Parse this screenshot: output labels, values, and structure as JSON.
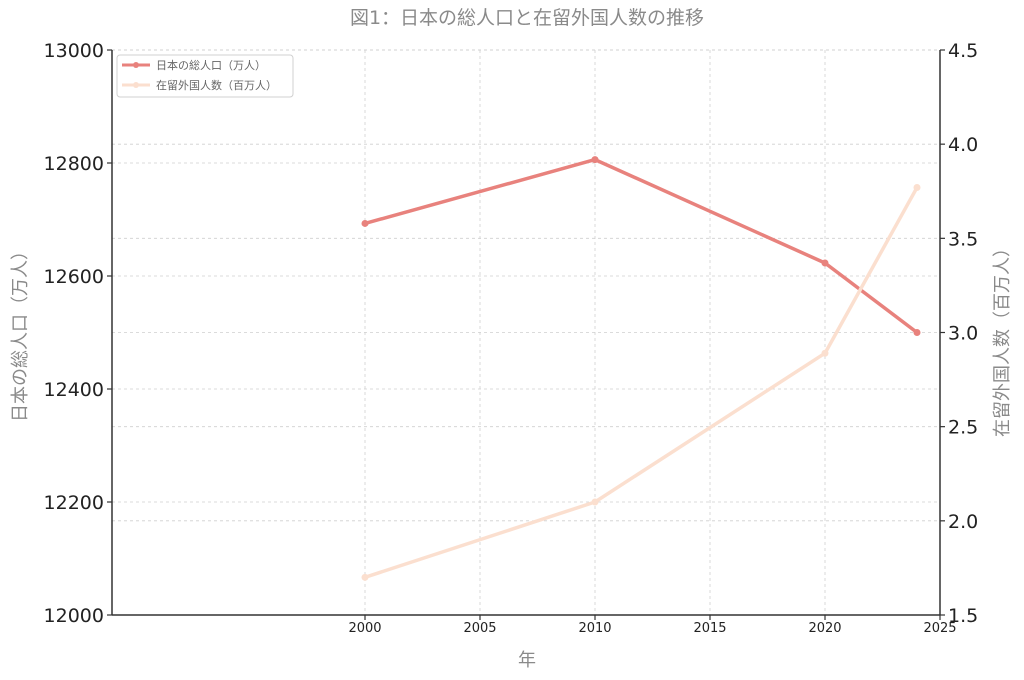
{
  "chart_data": {
    "type": "line",
    "title": "図1：日本の総人口と在留外国人数の推移",
    "xlabel": "年",
    "ylabel_left": "日本の総人口（万人）",
    "ylabel_right": "在留外国人数（百万人）",
    "xlim": [
      1989,
      2025
    ],
    "x_ticks": [
      2000,
      2005,
      2010,
      2015,
      2020,
      2025
    ],
    "ylim_left": [
      12000,
      13000
    ],
    "y_ticks_left": [
      12000,
      12200,
      12400,
      12600,
      12800,
      13000
    ],
    "ylim_right": [
      1.5,
      4.5
    ],
    "y_ticks_right": [
      "1.5",
      "2.0",
      "2.5",
      "3.0",
      "3.5",
      "4.0",
      "4.5"
    ],
    "grid": true,
    "legend_position": "top-left",
    "series": [
      {
        "name": "日本の総人口（万人）",
        "axis": "left",
        "color": "#e8827d",
        "x": [
          2000,
          2010,
          2020,
          2024
        ],
        "y": [
          12693,
          12806,
          12623,
          12500
        ]
      },
      {
        "name": "在留外国人数（百万人）",
        "axis": "right",
        "color": "#fbdfcf",
        "x": [
          2000,
          2010,
          2020,
          2024
        ],
        "y": [
          1.7,
          2.1,
          2.89,
          3.77
        ]
      }
    ]
  }
}
